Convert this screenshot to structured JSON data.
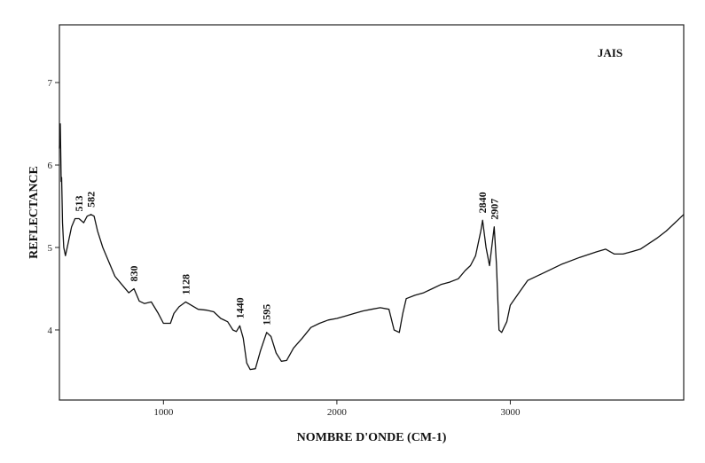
{
  "chart_data": {
    "type": "line",
    "title": "JAIS",
    "xlabel": "NOMBRE D'ONDE (CM-1)",
    "ylabel": "REFLECTANCE",
    "xlim": [
      400,
      4000
    ],
    "ylim": [
      3.15,
      7.7
    ],
    "x_ticks": [
      1000,
      2000,
      3000
    ],
    "y_ticks": [
      4,
      5,
      6,
      7
    ],
    "x_tick_labels": [
      "1000",
      "2000",
      "3000"
    ],
    "y_tick_labels": [
      "4",
      "5",
      "6",
      "7"
    ],
    "grid": false,
    "legend": "none",
    "line_color": "#111111",
    "peak_labels": [
      {
        "text": "513",
        "x": 513,
        "y": 5.35
      },
      {
        "text": "582",
        "x": 582,
        "y": 5.4
      },
      {
        "text": "830",
        "x": 830,
        "y": 4.5
      },
      {
        "text": "1128",
        "x": 1128,
        "y": 4.34
      },
      {
        "text": "1440",
        "x": 1440,
        "y": 4.05
      },
      {
        "text": "1595",
        "x": 1595,
        "y": 3.97
      },
      {
        "text": "2840",
        "x": 2840,
        "y": 5.33
      },
      {
        "text": "2907",
        "x": 2907,
        "y": 5.25
      }
    ],
    "series": [
      {
        "x": [
          400,
          405,
          410,
          413,
          418,
          425,
          435,
          450,
          470,
          490,
          513,
          540,
          560,
          582,
          600,
          620,
          650,
          680,
          720,
          760,
          800,
          830,
          860,
          890,
          930,
          970,
          1000,
          1040,
          1060,
          1090,
          1128,
          1160,
          1200,
          1250,
          1290,
          1330,
          1370,
          1400,
          1420,
          1440,
          1460,
          1480,
          1500,
          1530,
          1560,
          1595,
          1620,
          1650,
          1680,
          1710,
          1750,
          1800,
          1850,
          1900,
          1950,
          2000,
          2050,
          2100,
          2150,
          2200,
          2250,
          2300,
          2330,
          2360,
          2380,
          2400,
          2450,
          2500,
          2550,
          2600,
          2650,
          2700,
          2740,
          2770,
          2800,
          2830,
          2840,
          2860,
          2880,
          2907,
          2920,
          2935,
          2950,
          2980,
          3000,
          3050,
          3100,
          3200,
          3300,
          3400,
          3500,
          3550,
          3600,
          3650,
          3700,
          3750,
          3800,
          3850,
          3900,
          3950,
          4000
        ],
        "y": [
          6.2,
          6.5,
          5.8,
          5.85,
          5.3,
          5.0,
          4.9,
          5.05,
          5.25,
          5.35,
          5.35,
          5.3,
          5.38,
          5.4,
          5.38,
          5.2,
          5.0,
          4.85,
          4.65,
          4.55,
          4.45,
          4.5,
          4.35,
          4.32,
          4.34,
          4.2,
          4.08,
          4.08,
          4.2,
          4.28,
          4.34,
          4.3,
          4.25,
          4.24,
          4.22,
          4.14,
          4.1,
          4.0,
          3.98,
          4.05,
          3.9,
          3.6,
          3.52,
          3.53,
          3.75,
          3.97,
          3.92,
          3.72,
          3.62,
          3.63,
          3.78,
          3.9,
          4.03,
          4.08,
          4.12,
          4.14,
          4.17,
          4.2,
          4.23,
          4.25,
          4.27,
          4.25,
          4.0,
          3.97,
          4.2,
          4.38,
          4.42,
          4.45,
          4.5,
          4.55,
          4.58,
          4.62,
          4.72,
          4.78,
          4.9,
          5.2,
          5.33,
          5.0,
          4.78,
          5.25,
          4.8,
          4.0,
          3.97,
          4.1,
          4.3,
          4.45,
          4.6,
          4.7,
          4.8,
          4.88,
          4.95,
          4.98,
          4.92,
          4.92,
          4.95,
          4.98,
          5.05,
          5.12,
          5.2,
          5.3,
          5.4
        ]
      }
    ]
  }
}
